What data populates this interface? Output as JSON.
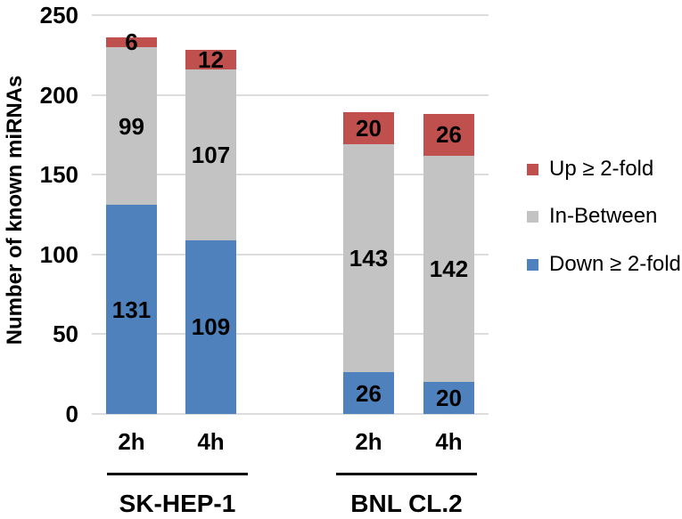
{
  "chart_data": {
    "type": "bar",
    "stacked": true,
    "ylabel": "Number of known miRNAs",
    "ylim": [
      0,
      250
    ],
    "yticks": [
      0,
      50,
      100,
      150,
      200,
      250
    ],
    "grid": "horizontal",
    "legend_position": "right",
    "series_order": [
      "down",
      "between",
      "up"
    ],
    "series_colors": {
      "down": "#4f81bd",
      "between": "#c3c3c3",
      "up": "#c0504d"
    },
    "groups": [
      {
        "label": "SK-HEP-1",
        "bars": [
          {
            "label": "2h",
            "values": {
              "down": 131,
              "between": 99,
              "up": 6
            }
          },
          {
            "label": "4h",
            "values": {
              "down": 109,
              "between": 107,
              "up": 12
            }
          }
        ]
      },
      {
        "label": "BNL CL.2",
        "bars": [
          {
            "label": "2h",
            "values": {
              "down": 26,
              "between": 143,
              "up": 20
            }
          },
          {
            "label": "4h",
            "values": {
              "down": 20,
              "between": 142,
              "up": 26
            }
          }
        ]
      }
    ],
    "legend": [
      {
        "key": "up",
        "label": "Up ≥ 2-fold",
        "color": "#c0504d"
      },
      {
        "key": "between",
        "label": "In-Between",
        "color": "#c3c3c3"
      },
      {
        "key": "down",
        "label": "Down ≥ 2-fold",
        "color": "#4f81bd"
      }
    ]
  }
}
